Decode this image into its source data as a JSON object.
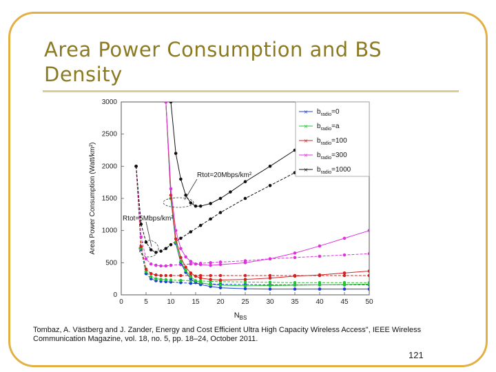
{
  "slide": {
    "title_line1": "Area Power Consumption and BS",
    "title_line2": "Density",
    "caption_line1": "Tombaz, A. Västberg and J. Zander, Energy and Cost Efficient Ultra High Capacity Wireless Access\", IEEE Wireless",
    "caption_line2": "Communication Magazine, vol. 18, no. 5, pp. 18–24, October 2011.",
    "page_number": "121",
    "frame_color": "#e2b043",
    "title_color": "#8b7a22"
  },
  "chart_data": {
    "type": "line",
    "xlabel": "N",
    "xlabel_sub": "BS",
    "ylabel": "Area Power Consumption (Watt/km²)",
    "xlim": [
      0,
      50
    ],
    "ylim": [
      0,
      3000
    ],
    "xticks": [
      "0",
      "5",
      "10",
      "15",
      "20",
      "25",
      "30",
      "35",
      "40",
      "45",
      "50"
    ],
    "yticks": [
      "0",
      "500",
      "1000",
      "1500",
      "2000",
      "2500",
      "3000"
    ],
    "legend_position": "top-right",
    "legend": [
      {
        "label": "b",
        "sub": "radio",
        "suffix": "=0",
        "color": "#1a3fd6"
      },
      {
        "label": "b",
        "sub": "radio",
        "suffix": "=a",
        "color": "#22c432"
      },
      {
        "label": "b",
        "sub": "radio",
        "suffix": "=100",
        "color": "#d42020"
      },
      {
        "label": "b",
        "sub": "radio",
        "suffix": "=300",
        "color": "#dc34dc"
      },
      {
        "label": "b",
        "sub": "radio",
        "suffix": "=1000",
        "color": "#111111"
      }
    ],
    "annotations": [
      {
        "text": "Rtot=20Mbps/km²",
        "at": [
          16,
          1800
        ]
      },
      {
        "text": "Rtot=5Mbps/km²",
        "at": [
          0.5,
          1180
        ]
      }
    ],
    "series": [
      {
        "group": "5Mbps",
        "color": "#1a3fd6",
        "x": [
          3,
          4,
          5,
          6,
          7,
          8,
          9,
          10,
          12,
          14,
          16,
          18,
          20,
          25,
          30,
          35,
          40,
          45,
          50
        ],
        "y": [
          2000,
          700,
          330,
          250,
          220,
          210,
          205,
          200,
          190,
          180,
          175,
          170,
          165,
          160,
          155,
          155,
          155,
          155,
          155
        ]
      },
      {
        "group": "5Mbps",
        "color": "#22c432",
        "x": [
          3,
          4,
          5,
          6,
          7,
          8,
          9,
          10,
          12,
          14,
          16,
          18,
          20,
          25,
          30,
          35,
          40,
          45,
          50
        ],
        "y": [
          2000,
          720,
          360,
          280,
          250,
          240,
          235,
          230,
          225,
          220,
          215,
          210,
          205,
          200,
          195,
          190,
          190,
          190,
          190
        ]
      },
      {
        "group": "5Mbps",
        "color": "#d42020",
        "x": [
          3,
          4,
          5,
          6,
          7,
          8,
          9,
          10,
          12,
          14,
          16,
          18,
          20,
          25,
          30,
          35,
          40,
          45,
          50
        ],
        "y": [
          2000,
          750,
          400,
          330,
          310,
          300,
          300,
          300,
          300,
          300,
          300,
          300,
          300,
          300,
          300,
          300,
          300,
          300,
          300
        ]
      },
      {
        "group": "5Mbps",
        "color": "#dc34dc",
        "x": [
          3,
          4,
          5,
          6,
          7,
          8,
          9,
          10,
          12,
          14,
          16,
          18,
          20,
          25,
          30,
          35,
          40,
          45,
          50
        ],
        "y": [
          2000,
          900,
          560,
          480,
          460,
          450,
          450,
          460,
          470,
          480,
          490,
          500,
          510,
          530,
          560,
          580,
          600,
          620,
          640
        ]
      },
      {
        "group": "5Mbps",
        "color": "#111111",
        "x": [
          3,
          4,
          5,
          6,
          7,
          8,
          9,
          10,
          12,
          14,
          16,
          18,
          20,
          25,
          30,
          35,
          40,
          45,
          50
        ],
        "y": [
          2000,
          1100,
          820,
          700,
          660,
          680,
          720,
          780,
          880,
          980,
          1080,
          1180,
          1280,
          1500,
          1700,
          1900,
          2100,
          2300,
          2500
        ]
      },
      {
        "group": "20Mbps",
        "color": "#1a3fd6",
        "x": [
          9,
          10,
          11,
          12,
          13,
          14,
          15,
          16,
          18,
          20,
          25,
          30,
          35,
          40,
          45,
          50
        ],
        "y": [
          3000,
          1500,
          800,
          500,
          350,
          250,
          190,
          160,
          130,
          110,
          95,
          90,
          90,
          90,
          90,
          90
        ]
      },
      {
        "group": "20Mbps",
        "color": "#22c432",
        "x": [
          9,
          10,
          11,
          12,
          13,
          14,
          15,
          16,
          18,
          20,
          25,
          30,
          35,
          40,
          45,
          50
        ],
        "y": [
          3000,
          1500,
          820,
          520,
          380,
          280,
          220,
          190,
          160,
          150,
          140,
          145,
          150,
          155,
          160,
          165
        ]
      },
      {
        "group": "20Mbps",
        "color": "#d42020",
        "x": [
          9,
          10,
          11,
          12,
          13,
          14,
          15,
          16,
          18,
          20,
          25,
          30,
          35,
          40,
          45,
          50
        ],
        "y": [
          3000,
          1550,
          870,
          580,
          430,
          340,
          290,
          260,
          240,
          230,
          240,
          260,
          290,
          310,
          340,
          370
        ]
      },
      {
        "group": "20Mbps",
        "color": "#dc34dc",
        "x": [
          9,
          10,
          11,
          12,
          13,
          14,
          15,
          16,
          18,
          20,
          25,
          30,
          35,
          40,
          45,
          50
        ],
        "y": [
          3000,
          1650,
          1000,
          720,
          590,
          520,
          480,
          470,
          460,
          470,
          500,
          560,
          650,
          760,
          880,
          1000
        ]
      },
      {
        "group": "20Mbps",
        "color": "#111111",
        "x": [
          10,
          11,
          12,
          13,
          14,
          15,
          16,
          18,
          20,
          22,
          25,
          30,
          35,
          40,
          45,
          50
        ],
        "y": [
          3000,
          2200,
          1800,
          1550,
          1430,
          1380,
          1380,
          1420,
          1500,
          1600,
          1760,
          2000,
          2250,
          2500,
          2750,
          3000
        ]
      }
    ]
  }
}
